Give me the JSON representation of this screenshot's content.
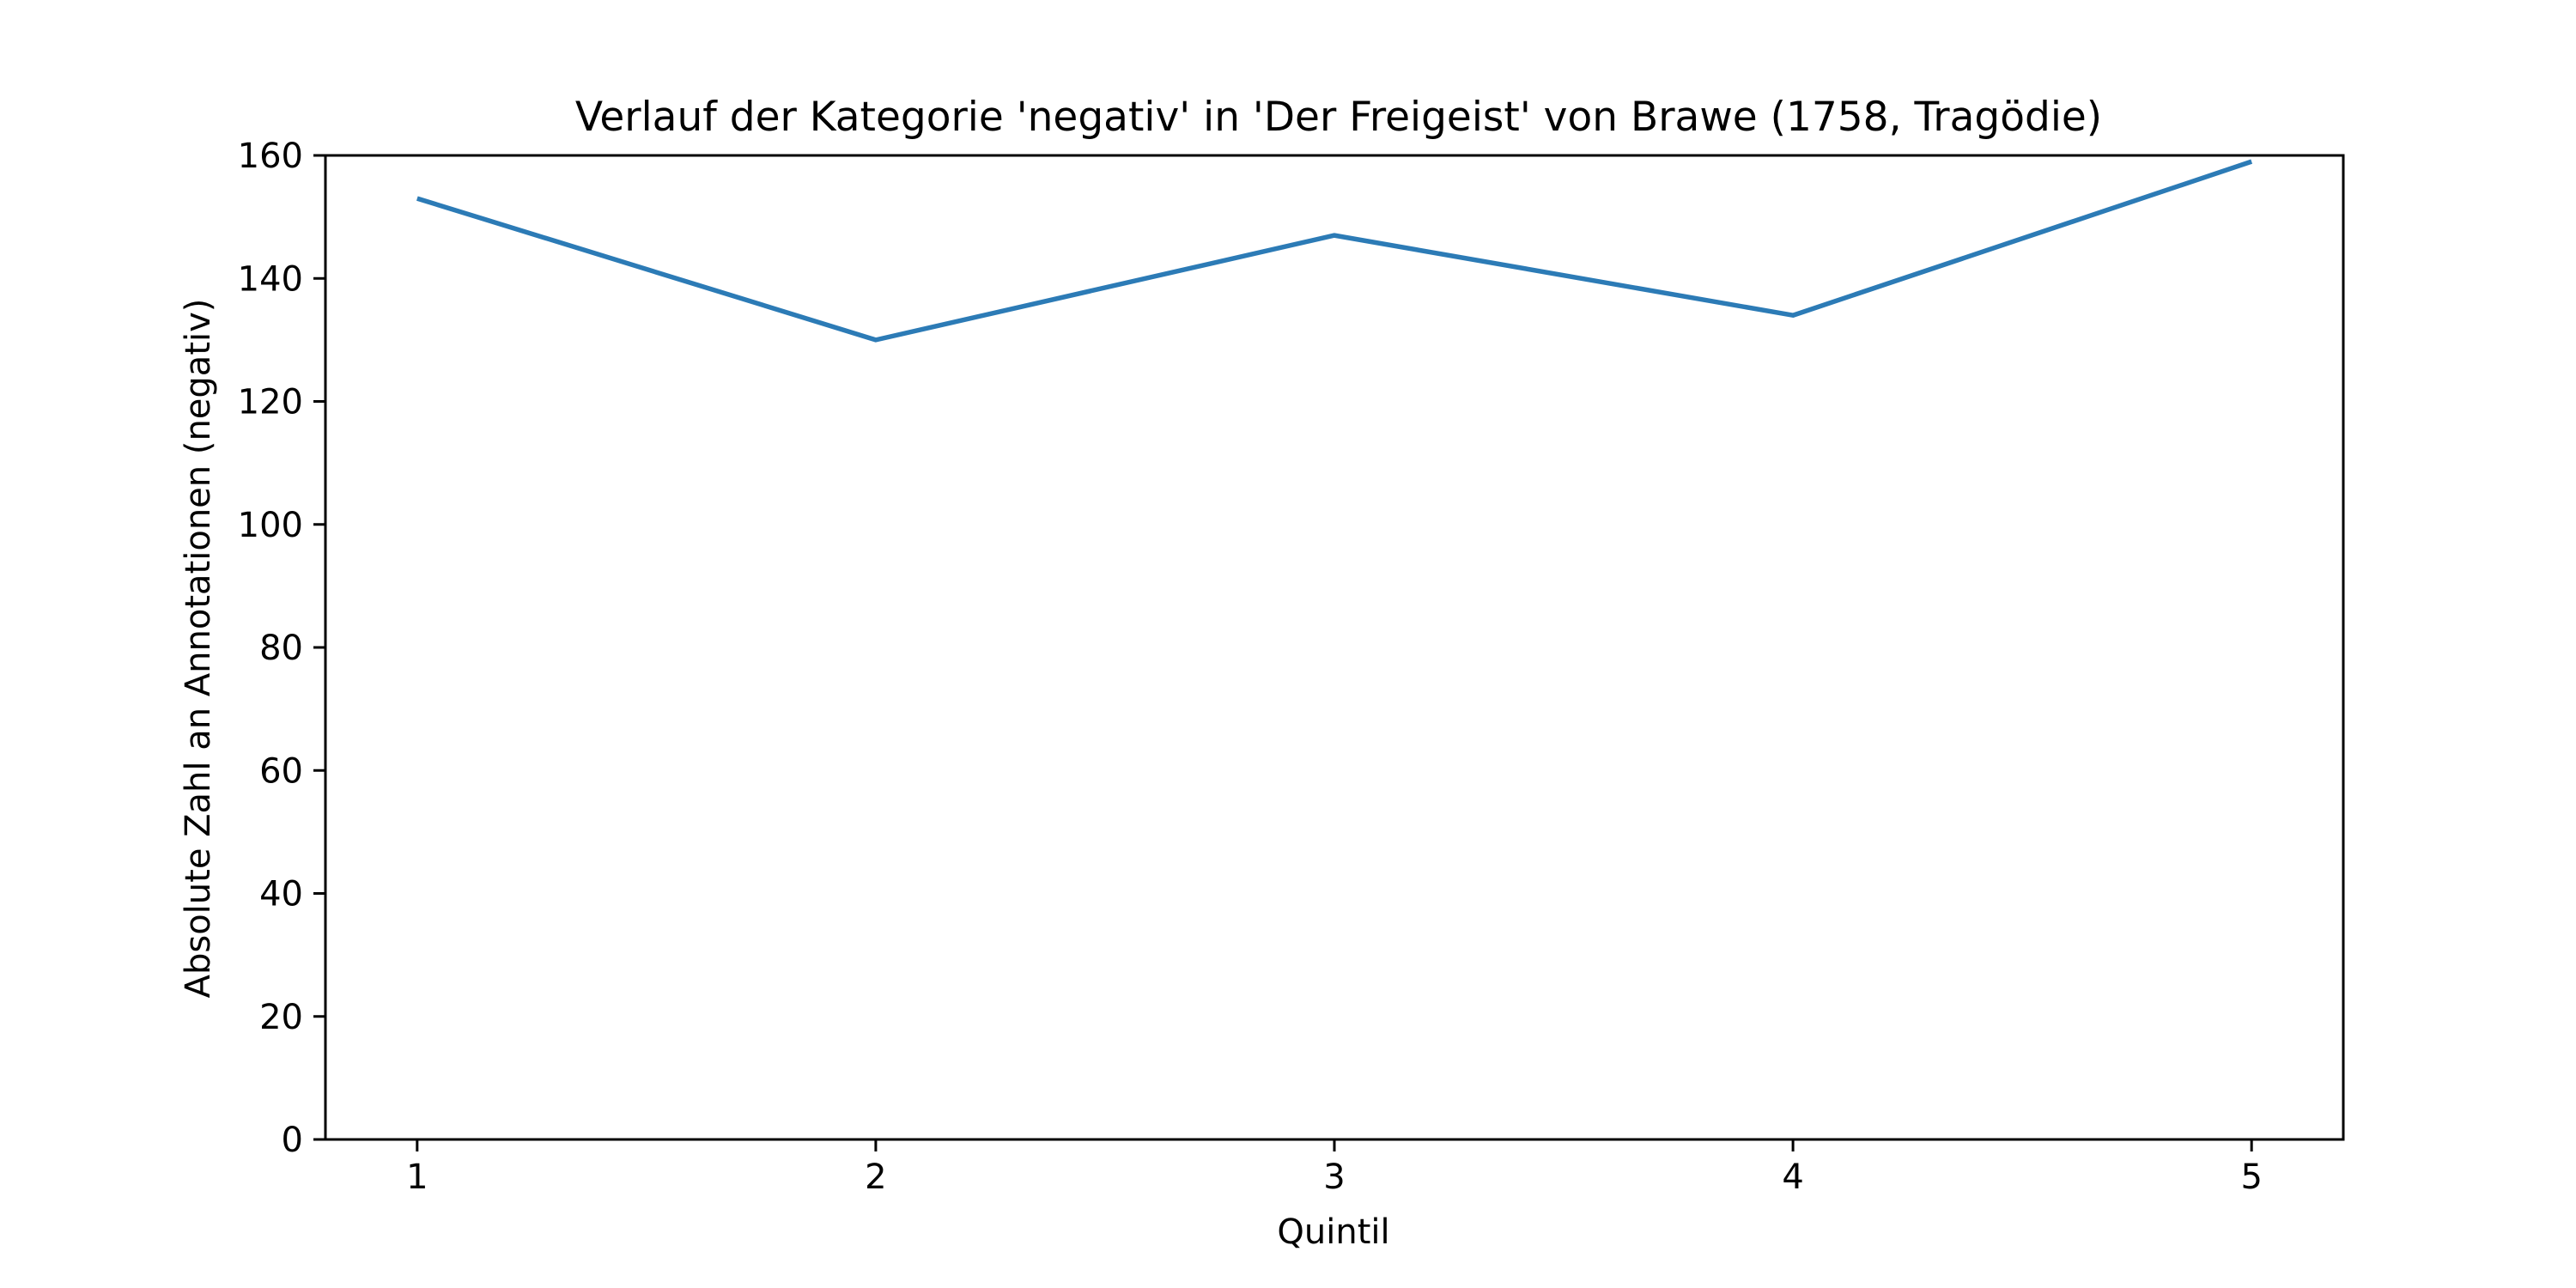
{
  "chart_data": {
    "type": "line",
    "title": "Verlauf der Kategorie 'negativ' in 'Der Freigeist' von Brawe (1758, Tragödie)",
    "xlabel": "Quintil",
    "ylabel": "Absolute Zahl an Annotationen (negativ)",
    "x": [
      1,
      2,
      3,
      4,
      5
    ],
    "series": [
      {
        "values": [
          153,
          130,
          147,
          134,
          159
        ]
      }
    ],
    "xlim": [
      0.8,
      5.2
    ],
    "ylim": [
      0,
      160
    ],
    "xticks": [
      "1",
      "2",
      "3",
      "4",
      "5"
    ],
    "yticks": [
      "0",
      "20",
      "40",
      "60",
      "80",
      "100",
      "120",
      "140",
      "160"
    ],
    "grid": false,
    "line_color": "#2c7bb6"
  }
}
